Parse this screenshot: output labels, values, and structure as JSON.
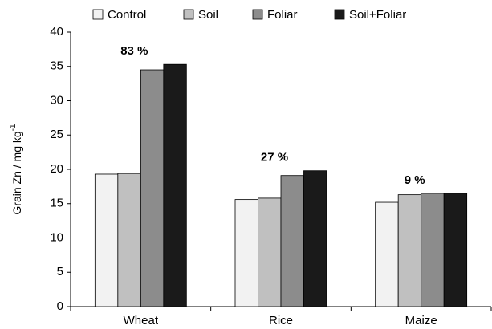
{
  "chart_data": {
    "type": "bar",
    "y_label": "Grain Zn / mg kg",
    "y_label_sup": "-1",
    "categories": [
      "Wheat",
      "Rice",
      "Maize"
    ],
    "series": [
      {
        "name": "Control",
        "color": "#f2f2f2",
        "values": [
          19.3,
          15.6,
          15.2
        ]
      },
      {
        "name": "Soil",
        "color": "#c0c0c0",
        "values": [
          19.4,
          15.8,
          16.3
        ]
      },
      {
        "name": "Foliar",
        "color": "#8c8c8c",
        "values": [
          34.5,
          19.1,
          16.5
        ]
      },
      {
        "name": "Soil+Foliar",
        "color": "#1a1a1a",
        "values": [
          35.3,
          19.8,
          16.5
        ]
      }
    ],
    "annotations": [
      "83 %",
      "27 %",
      "9 %"
    ],
    "ylim": [
      0,
      40
    ],
    "yticks": [
      0,
      5,
      10,
      15,
      20,
      25,
      30,
      35,
      40
    ],
    "grid": false,
    "legend": "top"
  }
}
